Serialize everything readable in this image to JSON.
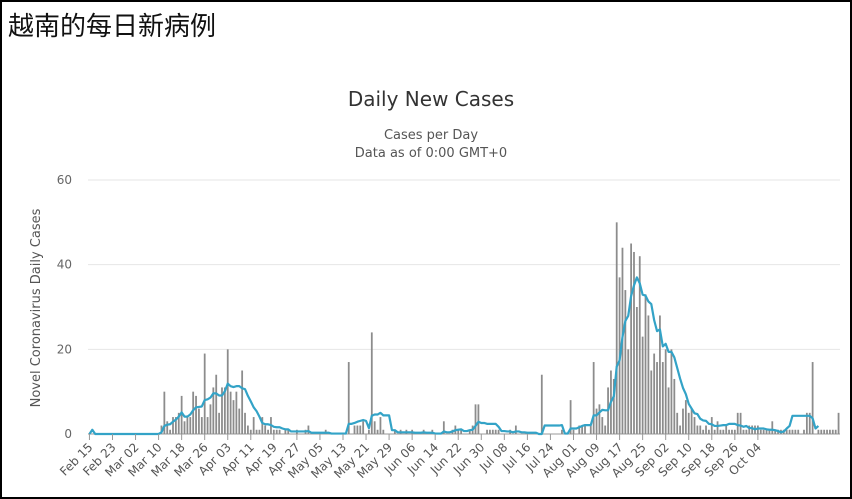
{
  "page": {
    "heading": "越南的每日新病例"
  },
  "colors": {
    "bar": "#8c8c8c",
    "line": "#33a3c7",
    "grid": "#e6e6e6",
    "axis": "#999999"
  },
  "chart_data": {
    "type": "bar",
    "title": "Daily New Cases",
    "subtitle_lines": [
      "Cases per Day",
      "Data as of 0:00 GMT+0"
    ],
    "ylabel": "Novel Coronavirus Daily Cases",
    "ylim": [
      0,
      60
    ],
    "yticks": [
      0,
      20,
      40,
      60
    ],
    "grid": true,
    "x_tick_labels": [
      "Feb 15",
      "Feb 23",
      "Mar 02",
      "Mar 10",
      "Mar 18",
      "Mar 26",
      "Apr 03",
      "Apr 11",
      "Apr 19",
      "Apr 27",
      "May 05",
      "May 13",
      "May 21",
      "May 29",
      "Jun 06",
      "Jun 14",
      "Jun 22",
      "Jun 30",
      "Jul 08",
      "Jul 16",
      "Jul 24",
      "Aug 01",
      "Aug 09",
      "Aug 17",
      "Aug 25",
      "Sep 02",
      "Sep 10",
      "Sep 18",
      "Sep 26",
      "Oct 04"
    ],
    "start_label": "Feb 15",
    "series": [
      {
        "type": "bar",
        "values": [
          0,
          0,
          0,
          0,
          0,
          0,
          0,
          0,
          0,
          0,
          0,
          0,
          0,
          0,
          0,
          0,
          0,
          0,
          0,
          0,
          0,
          0,
          0,
          0,
          0,
          2,
          10,
          3,
          1,
          4,
          4,
          5,
          9,
          3,
          4,
          4,
          10,
          9,
          6,
          4,
          19,
          4,
          7,
          11,
          14,
          5,
          11,
          11,
          20,
          10,
          8,
          10,
          6,
          15,
          5,
          2,
          1,
          4,
          1,
          1,
          4,
          2,
          1,
          4,
          1,
          1,
          1,
          0,
          1,
          1,
          0,
          0,
          1,
          0,
          0,
          1,
          2,
          0,
          0,
          0,
          0,
          0,
          1,
          0,
          0,
          0,
          0,
          0,
          0,
          0,
          17,
          0,
          2,
          2,
          2,
          3,
          0,
          1,
          24,
          3,
          1,
          4,
          1,
          0,
          0,
          0,
          1,
          0,
          1,
          0,
          1,
          0,
          1,
          0,
          0,
          0,
          1,
          0,
          0,
          1,
          0,
          0,
          0,
          3,
          0,
          0,
          1,
          2,
          1,
          1,
          0,
          0,
          1,
          2,
          7,
          7,
          0,
          0,
          1,
          1,
          1,
          1,
          1,
          0,
          0,
          0,
          1,
          0,
          2,
          0,
          0,
          0,
          0,
          0,
          0,
          0,
          0,
          14,
          0,
          0,
          0,
          0,
          0,
          0,
          1,
          0,
          0,
          8,
          1,
          0,
          2,
          2,
          2,
          0,
          2,
          17,
          6,
          7,
          4,
          2,
          11,
          15,
          13,
          50,
          37,
          44,
          34,
          20,
          45,
          43,
          30,
          42,
          23,
          33,
          28,
          15,
          19,
          17,
          28,
          17,
          20,
          11,
          20,
          13,
          5,
          2,
          6,
          8,
          5,
          6,
          4,
          2,
          2,
          1,
          2,
          1,
          4,
          1,
          3,
          1,
          1,
          2,
          1,
          1,
          1,
          5,
          5,
          1,
          1,
          2,
          2,
          2,
          2,
          1,
          1,
          1,
          1,
          3,
          1,
          1,
          1,
          1,
          1,
          1,
          1,
          1,
          1,
          0,
          1,
          5,
          5,
          17,
          0,
          1,
          1,
          1,
          1,
          1,
          1,
          1,
          5
        ]
      },
      {
        "type": "line",
        "values": [
          0,
          1,
          0,
          0,
          0,
          0,
          0,
          0,
          0,
          0,
          0,
          0,
          0,
          0,
          0,
          0,
          0,
          0,
          0,
          0,
          0,
          0,
          0,
          0,
          0,
          0.4,
          1.9,
          2.2,
          2.3,
          2.9,
          3.4,
          4.1,
          5.1,
          4.1,
          4.1,
          4.6,
          5.6,
          6.3,
          6.4,
          6.5,
          8,
          8.2,
          8.6,
          9.6,
          9.6,
          9.1,
          9.1,
          10.1,
          11.9,
          11.3,
          11.1,
          11.3,
          11.3,
          10.8,
          10.6,
          9,
          7.7,
          6.3,
          5.4,
          4.1,
          2.6,
          2.3,
          2.3,
          2.1,
          1.7,
          1.6,
          1.6,
          1.3,
          1.1,
          1.1,
          0.6,
          0.6,
          0.6,
          0.6,
          0.6,
          0.6,
          0.7,
          0.3,
          0.3,
          0.3,
          0.3,
          0.3,
          0.3,
          0.3,
          0.1,
          0.1,
          0.1,
          0.1,
          0.1,
          0.1,
          2.4,
          2.4,
          2.6,
          2.9,
          3.1,
          3.3,
          3.1,
          1.4,
          4.3,
          4.6,
          4.6,
          5,
          4.4,
          4.4,
          4.4,
          0.9,
          0.9,
          0.4,
          0.4,
          0.4,
          0.4,
          0.4,
          0.4,
          0.3,
          0.3,
          0.3,
          0.4,
          0.3,
          0.3,
          0.3,
          0.1,
          0.1,
          0.1,
          0.6,
          0.4,
          0.4,
          0.6,
          0.9,
          1,
          1.1,
          0.7,
          0.7,
          0.9,
          1,
          1.9,
          2.9,
          2.6,
          2.6,
          2.4,
          2.4,
          2.4,
          2.4,
          1.7,
          0.7,
          0.7,
          0.6,
          0.6,
          0.4,
          0.6,
          0.6,
          0.4,
          0.4,
          0.3,
          0.3,
          0.3,
          0.3,
          0,
          0,
          2,
          2,
          2,
          2,
          2,
          2,
          2.1,
          0.1,
          0.1,
          1.3,
          1.3,
          1.3,
          1.6,
          1.9,
          2.1,
          2.1,
          2.1,
          4.4,
          4.4,
          5.1,
          5.7,
          5.6,
          5.6,
          7.6,
          8.9,
          15.9,
          17.4,
          22.9,
          26.7,
          27.9,
          32.6,
          35.1,
          37,
          35.6,
          32.9,
          32.7,
          31.3,
          30.7,
          26.9,
          24.3,
          24.7,
          20.7,
          21.3,
          19.4,
          19.4,
          18.1,
          15.6,
          13.1,
          10.9,
          9.4,
          7.1,
          6,
          4.9,
          4.7,
          3.6,
          3.2,
          3.1,
          2.4,
          2.3,
          1.9,
          1.9,
          2,
          2.1,
          2.1,
          2.4,
          2.4,
          2.4,
          2.1,
          2,
          1.7,
          1.9,
          1.4,
          1.4,
          1.1,
          1.3,
          1.3,
          1.3,
          1.1,
          1,
          1,
          0.9,
          0.7,
          0.4,
          0.6,
          1.3,
          1.9,
          4.3,
          4.3,
          4.3,
          4.3,
          4.3,
          4.3,
          4.3,
          3.7,
          1.3,
          1.9
        ]
      }
    ]
  }
}
